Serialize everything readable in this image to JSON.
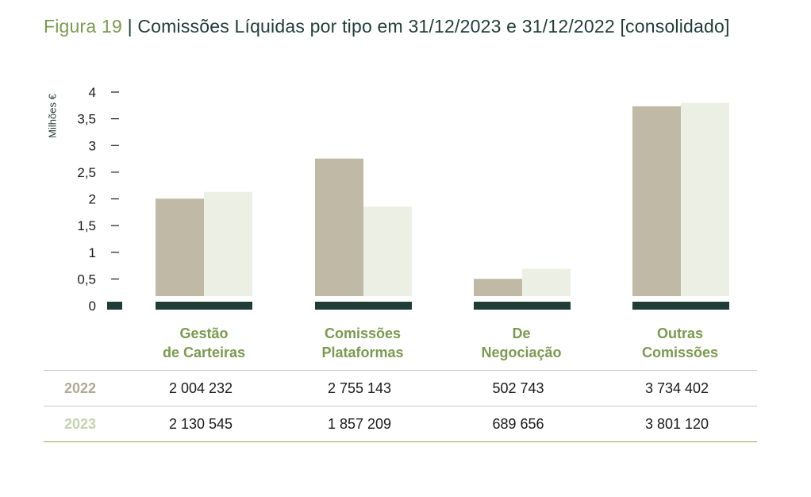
{
  "title": {
    "figure": "Figura 19",
    "separator": "|",
    "text": "Comissões Líquidas por tipo em 31/12/2023 e 31/12/2022 [consolidado]"
  },
  "chart_data": {
    "type": "bar",
    "ylabel": "Milhões €",
    "ylim": [
      0,
      4
    ],
    "yticks": [
      0,
      0.5,
      1,
      1.5,
      2,
      2.5,
      3,
      3.5,
      4
    ],
    "ytick_labels": [
      "0",
      "0,5",
      "1",
      "1,5",
      "2",
      "2,5",
      "3",
      "3,5",
      "4"
    ],
    "categories": [
      [
        "Gestão",
        "de Carteiras"
      ],
      [
        "Comissões",
        "Plataformas"
      ],
      [
        "De",
        "Negociação"
      ],
      [
        "Outras",
        "Comissões"
      ]
    ],
    "series": [
      {
        "name": "2022",
        "color": "#c0b9a6",
        "values": [
          2004232,
          2755143,
          502743,
          3734402
        ]
      },
      {
        "name": "2023",
        "color": "#ecf0e4",
        "values": [
          2130545,
          1857209,
          689656,
          3801120
        ]
      }
    ],
    "baseline_color": "#1f3d35",
    "grid": false,
    "legend": "table-below"
  },
  "table": {
    "rows": [
      {
        "label": "2022",
        "cells": [
          "2 004 232",
          "2 755 143",
          "502 743",
          "3 734 402"
        ]
      },
      {
        "label": "2023",
        "cells": [
          "2 130 545",
          "1 857 209",
          "689 656",
          "3 801 120"
        ]
      }
    ]
  }
}
